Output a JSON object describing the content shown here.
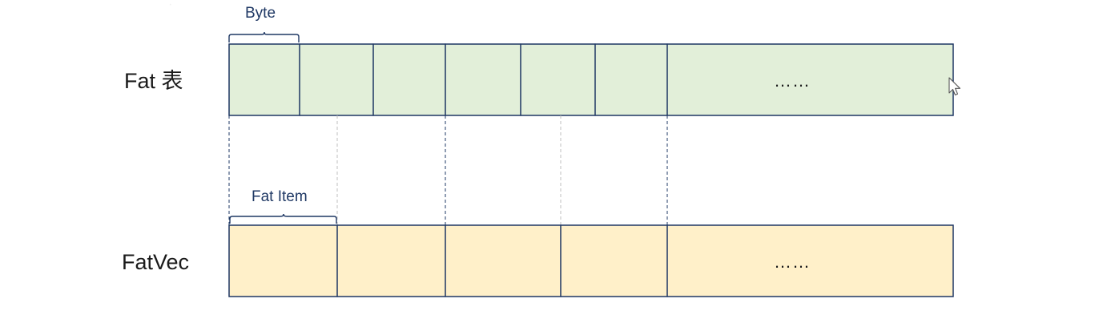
{
  "fat_table": {
    "label": "Fat 表",
    "ellipsis": "……",
    "fill": "#e2efd9",
    "cell_count": 7
  },
  "fat_vec": {
    "label": "FatVec",
    "ellipsis": "……",
    "fill": "#fff0c9",
    "cell_count": 5
  },
  "braces": {
    "byte_label": "Byte",
    "fat_item_label": "Fat Item"
  },
  "colors": {
    "border": "#1f3864",
    "dashed_guide": "#1f3864",
    "light_guide": "#bfbfbf"
  },
  "cursor": "pointer-cursor-icon"
}
